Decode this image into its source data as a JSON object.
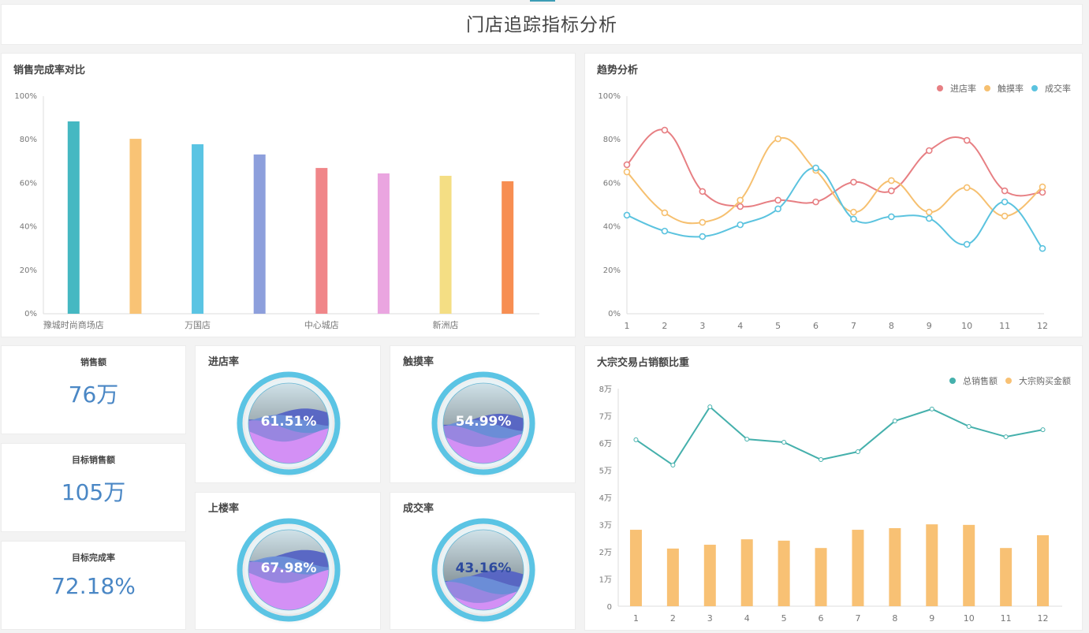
{
  "header": {
    "title": "门店追踪指标分析"
  },
  "sales_completion": {
    "title": "销售完成率对比",
    "yticks": [
      "0%",
      "20%",
      "40%",
      "60%",
      "80%",
      "100%"
    ],
    "visible_labels": [
      {
        "index": 0,
        "label": "豫城时尚商场店"
      },
      {
        "index": 2,
        "label": "万国店"
      },
      {
        "index": 4,
        "label": "中心城店"
      },
      {
        "index": 6,
        "label": "新洲店"
      }
    ],
    "bar_colors": [
      "#45b8c2",
      "#f9c375",
      "#5ac4e3",
      "#8d9fdc",
      "#f08689",
      "#eaa5e0",
      "#f4de84",
      "#f78e52"
    ]
  },
  "trend": {
    "title": "趋势分析",
    "yticks": [
      "0%",
      "20%",
      "40%",
      "60%",
      "80%",
      "100%"
    ],
    "xticks": [
      "1",
      "2",
      "3",
      "4",
      "5",
      "6",
      "7",
      "8",
      "9",
      "10",
      "11",
      "12"
    ],
    "legend": [
      {
        "name": "进店率",
        "color": "#e77f83"
      },
      {
        "name": "触摸率",
        "color": "#f6c070"
      },
      {
        "name": "成交率",
        "color": "#5bc3df"
      }
    ]
  },
  "kpis": [
    {
      "label": "销售额",
      "value": "76万"
    },
    {
      "label": "目标销售额",
      "value": "105万"
    },
    {
      "label": "目标完成率",
      "value": "72.18%"
    }
  ],
  "gauges": [
    {
      "title": "进店率",
      "value": "61.51%",
      "percent": 61.51,
      "text_color": "#ffffff"
    },
    {
      "title": "触摸率",
      "value": "54.99%",
      "percent": 54.99,
      "text_color": "#ffffff"
    },
    {
      "title": "上楼率",
      "value": "67.98%",
      "percent": 67.98,
      "text_color": "#ffffff"
    },
    {
      "title": "成交率",
      "value": "43.16%",
      "percent": 43.16,
      "text_color": "#2d4a9e"
    }
  ],
  "bulk": {
    "title": "大宗交易占销额比重",
    "yticks": [
      "0",
      "1万",
      "2万",
      "3万",
      "4万",
      "5万",
      "6万",
      "7万",
      "8万"
    ],
    "xticks": [
      "1",
      "2",
      "3",
      "4",
      "5",
      "6",
      "7",
      "8",
      "9",
      "10",
      "11",
      "12"
    ],
    "legend": [
      {
        "name": "总销售额",
        "color": "#45b0ac"
      },
      {
        "name": "大宗购买金额",
        "color": "#f8c174"
      }
    ]
  },
  "chart_data": [
    {
      "type": "bar",
      "title": "销售完成率对比",
      "categories": [
        "豫城时尚商场店",
        "",
        "万国店",
        "",
        "中心城店",
        "",
        "新洲店",
        ""
      ],
      "values": [
        88.4,
        80.4,
        77.9,
        73.2,
        67.0,
        64.5,
        63.4,
        60.9
      ],
      "xlabel": "",
      "ylabel": "",
      "ylim": [
        0,
        100
      ],
      "yunit": "%",
      "grid": false
    },
    {
      "type": "line",
      "title": "趋势分析",
      "x": [
        1,
        2,
        3,
        4,
        5,
        6,
        7,
        8,
        9,
        10,
        11,
        12
      ],
      "series": [
        {
          "name": "进店率",
          "values": [
            68.5,
            84.4,
            56.2,
            49.3,
            52.2,
            51.4,
            60.5,
            56.5,
            75.0,
            79.7,
            56.5,
            55.8
          ]
        },
        {
          "name": "触摸率",
          "values": [
            65.2,
            46.4,
            42.0,
            52.2,
            80.4,
            65.9,
            46.7,
            61.2,
            46.7,
            58.0,
            44.9,
            58.3
          ]
        },
        {
          "name": "成交率",
          "values": [
            45.3,
            38.0,
            35.5,
            40.9,
            48.2,
            67.0,
            43.5,
            44.6,
            43.8,
            31.9,
            51.4,
            30.0
          ]
        }
      ],
      "ylim": [
        0,
        100
      ],
      "yunit": "%",
      "smooth": true,
      "legend_position": "top-right",
      "grid": false
    },
    {
      "type": "bar",
      "title": "大宗交易占销额比重",
      "x": [
        1,
        2,
        3,
        4,
        5,
        6,
        7,
        8,
        9,
        10,
        11,
        12
      ],
      "series": [
        {
          "name": "总销售额",
          "type": "line",
          "values": [
            6.12,
            5.19,
            7.33,
            6.14,
            6.03,
            5.39,
            5.68,
            6.81,
            7.25,
            6.61,
            6.23,
            6.49
          ]
        },
        {
          "name": "大宗购买金额",
          "type": "bar",
          "values": [
            2.81,
            2.12,
            2.26,
            2.46,
            2.41,
            2.14,
            2.81,
            2.87,
            3.01,
            2.99,
            2.14,
            2.61
          ]
        }
      ],
      "ylim": [
        0,
        8
      ],
      "yunit": "万",
      "legend_position": "top-right",
      "grid": false
    }
  ]
}
